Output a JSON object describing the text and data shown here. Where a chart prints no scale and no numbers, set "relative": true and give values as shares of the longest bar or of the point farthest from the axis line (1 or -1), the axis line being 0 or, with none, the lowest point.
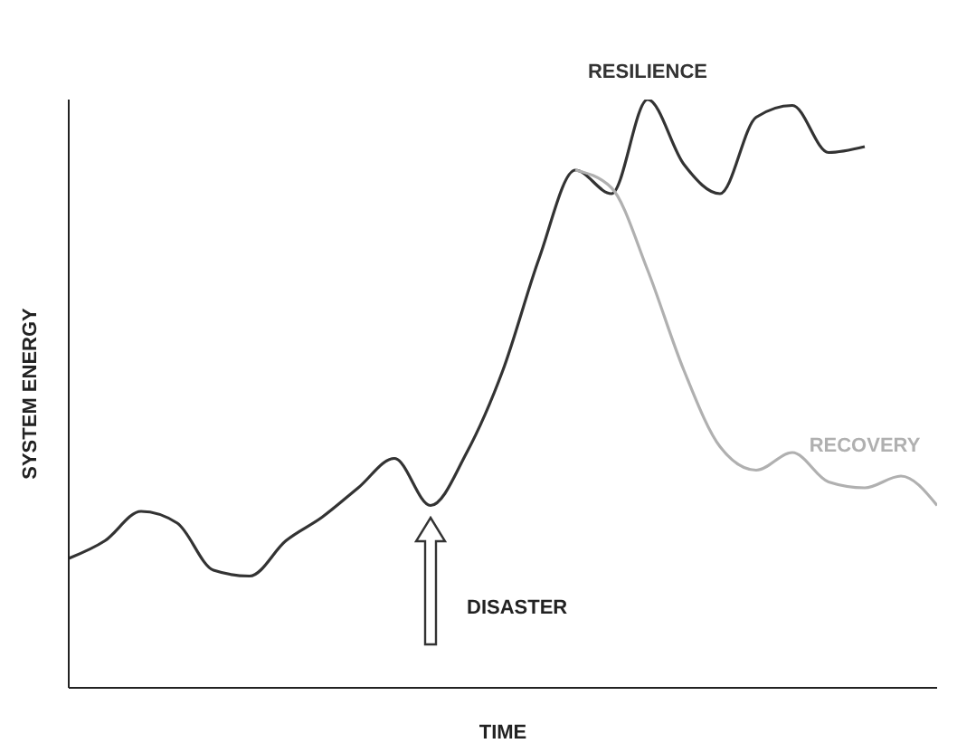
{
  "chart_data": {
    "type": "line",
    "relative": true,
    "xlabel": "TIME",
    "ylabel": "SYSTEM ENERGY",
    "categories": [
      null,
      null,
      null,
      null,
      null,
      null,
      null,
      null,
      null,
      null,
      null,
      null,
      null,
      null,
      null,
      null,
      null,
      null,
      null,
      null,
      null,
      null,
      null,
      null,
      null
    ],
    "series": [
      {
        "name": "RESILIENCE",
        "color": "#333333",
        "values": [
          0.22,
          0.25,
          0.3,
          0.28,
          0.2,
          0.19,
          0.25,
          0.29,
          0.34,
          0.39,
          0.31,
          0.4,
          0.54,
          0.73,
          0.88,
          0.84,
          1.0,
          0.89,
          0.84,
          0.97,
          0.99,
          0.91,
          0.92,
          null,
          null
        ]
      },
      {
        "name": "RECOVERY",
        "color": "#b0b0b0",
        "values": [
          null,
          null,
          null,
          null,
          null,
          null,
          null,
          null,
          null,
          null,
          null,
          null,
          null,
          null,
          0.88,
          0.85,
          0.71,
          0.54,
          0.41,
          0.37,
          0.4,
          0.35,
          0.34,
          0.36,
          0.31
        ]
      }
    ],
    "annotations": [
      "DISASTER"
    ],
    "grid": false,
    "legend": false,
    "marker": "none",
    "line_style": "solid"
  }
}
